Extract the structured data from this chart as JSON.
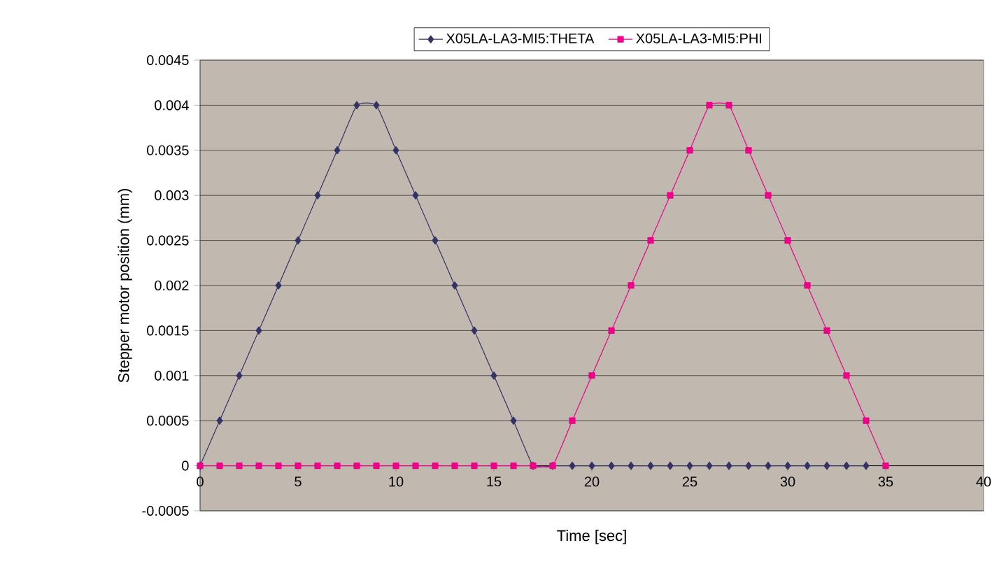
{
  "chart_data": {
    "type": "line",
    "xlabel": "Time [sec]",
    "ylabel": "Stepper motor position (mm)",
    "xlim": [
      0,
      40
    ],
    "xticks": [
      0,
      5,
      10,
      15,
      20,
      25,
      30,
      35,
      40
    ],
    "ylim": [
      -0.0005,
      0.0045
    ],
    "yticks": [
      -0.0005,
      0,
      0.0005,
      0.001,
      0.0015,
      0.002,
      0.0025,
      0.003,
      0.0035,
      0.004,
      0.0045
    ],
    "grid": "y",
    "legend": "top",
    "line_style": "solid",
    "series": [
      {
        "name": "X05LA-LA3-MI5:THETA",
        "color": "#333366",
        "marker": "diamond",
        "x": [
          0,
          1,
          2,
          3,
          4,
          5,
          6,
          7,
          8,
          9,
          10,
          11,
          12,
          13,
          14,
          15,
          16,
          17,
          18,
          19,
          20,
          21,
          22,
          23,
          24,
          25,
          26,
          27,
          28,
          29,
          30,
          31,
          32,
          33,
          34
        ],
        "values": [
          0,
          0.0005,
          0.001,
          0.0015,
          0.002,
          0.0025,
          0.003,
          0.0035,
          0.004,
          0.004,
          0.0035,
          0.003,
          0.0025,
          0.002,
          0.0015,
          0.001,
          0.0005,
          0,
          0,
          0,
          0,
          0,
          0,
          0,
          0,
          0,
          0,
          0,
          0,
          0,
          0,
          0,
          0,
          0,
          0
        ]
      },
      {
        "name": "X05LA-LA3-MI5:PHI",
        "color": "#ee0088",
        "marker": "square",
        "x": [
          0,
          1,
          2,
          3,
          4,
          5,
          6,
          7,
          8,
          9,
          10,
          11,
          12,
          13,
          14,
          15,
          16,
          17,
          18,
          19,
          20,
          21,
          22,
          23,
          24,
          25,
          26,
          27,
          28,
          29,
          30,
          31,
          32,
          33,
          34,
          35
        ],
        "values": [
          0,
          0,
          0,
          0,
          0,
          0,
          0,
          0,
          0,
          0,
          0,
          0,
          0,
          0,
          0,
          0,
          0,
          0,
          0,
          0.0005,
          0.001,
          0.0015,
          0.002,
          0.0025,
          0.003,
          0.0035,
          0.004,
          0.004,
          0.0035,
          0.003,
          0.0025,
          0.002,
          0.0015,
          0.001,
          0.0005,
          0
        ]
      }
    ]
  }
}
